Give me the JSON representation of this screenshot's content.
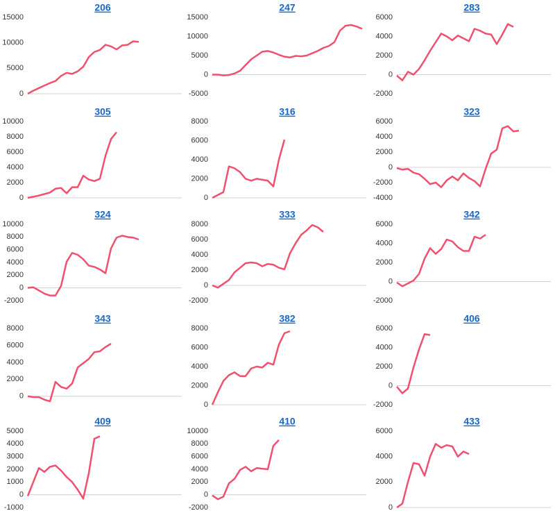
{
  "chart_data": [
    {
      "type": "line",
      "title": "206",
      "color": "#f0506e",
      "ylim": [
        0,
        15000
      ],
      "yticks": [
        0,
        5000,
        10000,
        15000
      ],
      "values": [
        0,
        600,
        1100,
        1600,
        2100,
        2500,
        3500,
        4100,
        3900,
        4400,
        5300,
        7200,
        8200,
        8600,
        9600,
        9300,
        8700,
        9500,
        9600,
        10300,
        10200
      ]
    },
    {
      "type": "line",
      "title": "247",
      "color": "#f0506e",
      "ylim": [
        -5000,
        15000
      ],
      "yticks": [
        -5000,
        0,
        5000,
        10000,
        15000
      ],
      "values": [
        0,
        0,
        -200,
        -100,
        300,
        1000,
        2500,
        4000,
        5000,
        6000,
        6200,
        5800,
        5200,
        4700,
        4500,
        4900,
        4800,
        5000,
        5600,
        6200,
        7000,
        7500,
        8500,
        11500,
        12800,
        13000,
        12600,
        12000
      ]
    },
    {
      "type": "line",
      "title": "283",
      "color": "#f0506e",
      "ylim": [
        -2000,
        6000
      ],
      "yticks": [
        -2000,
        0,
        2000,
        4000,
        6000
      ],
      "values": [
        -100,
        -600,
        300,
        0,
        600,
        1500,
        2500,
        3400,
        4300,
        4000,
        3600,
        4100,
        3800,
        3500,
        4800,
        4600,
        4300,
        4200,
        3200,
        4200,
        5300,
        5000
      ]
    },
    {
      "type": "line",
      "title": "305",
      "color": "#f0506e",
      "ylim": [
        0,
        10000
      ],
      "yticks": [
        0,
        2000,
        4000,
        6000,
        8000,
        10000
      ],
      "values": [
        0,
        150,
        300,
        500,
        700,
        1200,
        1300,
        600,
        1400,
        1400,
        2900,
        2400,
        2200,
        2500,
        5500,
        7700,
        8600
      ]
    },
    {
      "type": "line",
      "title": "316",
      "color": "#f0506e",
      "ylim": [
        0,
        8000
      ],
      "yticks": [
        0,
        2000,
        4000,
        6000,
        8000
      ],
      "values": [
        0,
        300,
        600,
        3300,
        3100,
        2700,
        2000,
        1800,
        2000,
        1900,
        1800,
        1200,
        4000,
        6100
      ]
    },
    {
      "type": "line",
      "title": "323",
      "color": "#f0506e",
      "ylim": [
        -4000,
        6000
      ],
      "yticks": [
        -4000,
        -2000,
        0,
        2000,
        4000,
        6000
      ],
      "values": [
        -100,
        -300,
        -200,
        -700,
        -900,
        -1500,
        -2200,
        -2000,
        -2600,
        -1700,
        -1200,
        -1700,
        -800,
        -1400,
        -1800,
        -2500,
        -200,
        1800,
        2300,
        5100,
        5400,
        4700,
        4800
      ]
    },
    {
      "type": "line",
      "title": "324",
      "color": "#f0506e",
      "ylim": [
        -2000,
        10000
      ],
      "yticks": [
        -2000,
        0,
        2000,
        4000,
        6000,
        8000,
        10000
      ],
      "values": [
        0,
        100,
        -400,
        -900,
        -1200,
        -1200,
        300,
        4100,
        5500,
        5200,
        4500,
        3500,
        3300,
        2900,
        2300,
        6200,
        7900,
        8200,
        8000,
        7900,
        7600
      ]
    },
    {
      "type": "line",
      "title": "333",
      "color": "#f0506e",
      "ylim": [
        -2000,
        8000
      ],
      "yticks": [
        -2000,
        0,
        2000,
        4000,
        6000,
        8000
      ],
      "values": [
        0,
        -300,
        200,
        700,
        1700,
        2300,
        2900,
        3000,
        2900,
        2500,
        2800,
        2700,
        2300,
        2100,
        4200,
        5500,
        6600,
        7200,
        7900,
        7600,
        7000
      ]
    },
    {
      "type": "line",
      "title": "342",
      "color": "#f0506e",
      "ylim": [
        -2000,
        6000
      ],
      "yticks": [
        -2000,
        0,
        2000,
        4000,
        6000
      ],
      "values": [
        -100,
        -500,
        -200,
        100,
        800,
        2400,
        3500,
        2900,
        3400,
        4400,
        4200,
        3600,
        3200,
        3200,
        4700,
        4500,
        4900
      ]
    },
    {
      "type": "line",
      "title": "343",
      "color": "#f0506e",
      "ylim": [
        -1000,
        8000
      ],
      "yticks": [
        0,
        2000,
        4000,
        6000,
        8000
      ],
      "values": [
        0,
        -100,
        -100,
        -400,
        -600,
        1700,
        1100,
        900,
        1500,
        3400,
        3900,
        4400,
        5200,
        5300,
        5800,
        6200
      ]
    },
    {
      "type": "line",
      "title": "382",
      "color": "#f0506e",
      "ylim": [
        0,
        8000
      ],
      "yticks": [
        0,
        2000,
        4000,
        6000,
        8000
      ],
      "values": [
        0,
        1300,
        2500,
        3100,
        3400,
        3000,
        3000,
        3800,
        4000,
        3900,
        4400,
        4200,
        6300,
        7500,
        7700
      ]
    },
    {
      "type": "line",
      "title": "406",
      "color": "#f0506e",
      "ylim": [
        -2000,
        6000
      ],
      "yticks": [
        -2000,
        0,
        2000,
        4000,
        6000
      ],
      "values": [
        -100,
        -800,
        -300,
        1900,
        3800,
        5400,
        5300
      ]
    },
    {
      "type": "line",
      "title": "409",
      "color": "#f0506e",
      "ylim": [
        -1000,
        5000
      ],
      "yticks": [
        -1000,
        0,
        1000,
        2000,
        3000,
        4000,
        5000
      ],
      "values": [
        -100,
        1000,
        2100,
        1800,
        2200,
        2300,
        1900,
        1400,
        1000,
        400,
        -300,
        1700,
        4400,
        4600
      ]
    },
    {
      "type": "line",
      "title": "410",
      "color": "#f0506e",
      "ylim": [
        -2000,
        10000
      ],
      "yticks": [
        -2000,
        0,
        2000,
        4000,
        6000,
        8000,
        10000
      ],
      "values": [
        -100,
        -700,
        -300,
        1800,
        2500,
        3900,
        4400,
        3700,
        4200,
        4100,
        4000,
        7700,
        8600
      ]
    },
    {
      "type": "line",
      "title": "433",
      "color": "#f0506e",
      "ylim": [
        0,
        6000
      ],
      "yticks": [
        0,
        2000,
        4000,
        6000
      ],
      "values": [
        0,
        300,
        2000,
        3500,
        3400,
        2500,
        4000,
        5000,
        4700,
        4900,
        4800,
        4000,
        4400,
        4200
      ]
    }
  ]
}
